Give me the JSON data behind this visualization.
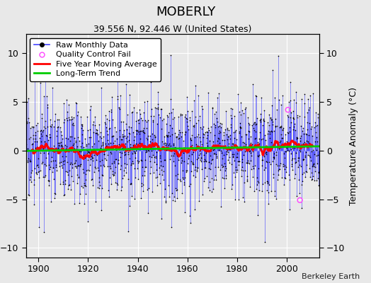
{
  "title": "MOBERLY",
  "subtitle": "39.556 N, 92.446 W (United States)",
  "ylabel": "Temperature Anomaly (°C)",
  "attribution": "Berkeley Earth",
  "xlim": [
    1895,
    2013
  ],
  "ylim": [
    -11,
    12
  ],
  "yticks": [
    -10,
    -5,
    0,
    5,
    10
  ],
  "xticks": [
    1900,
    1920,
    1940,
    1960,
    1980,
    2000
  ],
  "seed": 17,
  "start_year": 1895,
  "end_year": 2012,
  "bg_color": "#e8e8e8",
  "grid_color": "#ffffff",
  "raw_line_color": "#4444ff",
  "raw_dot_color": "#000000",
  "ma_color": "#ff0000",
  "trend_color": "#00cc00",
  "qc_color": "#ff44ff",
  "title_fontsize": 13,
  "subtitle_fontsize": 9,
  "legend_fontsize": 8,
  "axis_fontsize": 9
}
